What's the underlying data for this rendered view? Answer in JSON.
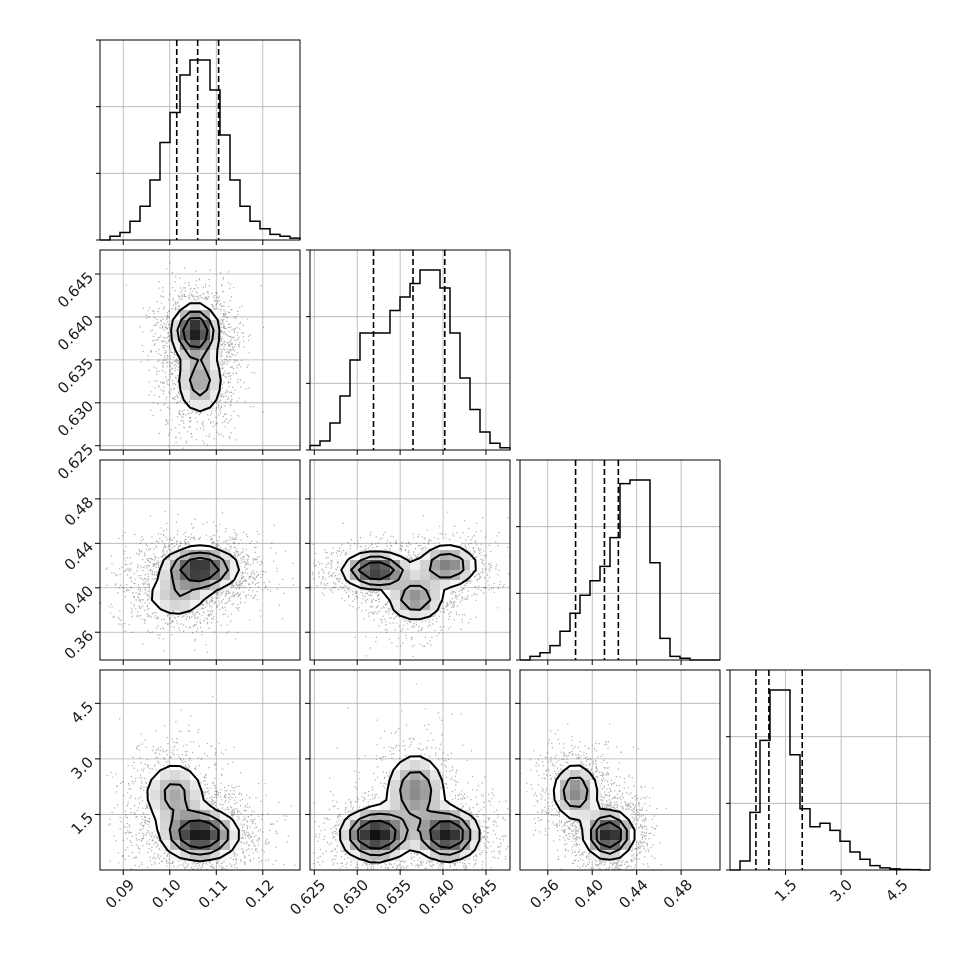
{
  "chart_data": {
    "type": "corner",
    "grid": true,
    "parameters": [
      {
        "ticks": [
          "0.09",
          "0.10",
          "0.11",
          "0.12"
        ],
        "range": [
          0.085,
          0.128
        ],
        "mean": 0.106,
        "sd": 0.0045,
        "quantiles": [
          0.1015,
          0.106,
          0.1105
        ],
        "histogram": [
          0,
          1,
          2,
          5,
          9,
          16,
          26,
          34,
          44,
          48,
          48,
          40,
          28,
          16,
          9,
          5,
          3,
          1.5,
          1,
          0.5
        ]
      },
      {
        "ticks": [
          "0.625",
          "0.630",
          "0.635",
          "0.640",
          "0.645"
        ],
        "range": [
          0.6245,
          0.6478
        ],
        "mean": 0.6365,
        "sd": 0.0035,
        "quantiles": [
          0.6319,
          0.6365,
          0.6402
        ],
        "histogram": [
          1,
          2,
          6,
          12,
          20,
          26,
          26,
          26,
          31,
          34,
          37,
          40,
          40,
          36,
          26,
          16,
          9,
          4,
          1.5,
          0.5
        ]
      },
      {
        "ticks": [
          "0.36",
          "0.40",
          "0.44",
          "0.48"
        ],
        "range": [
          0.335,
          0.515
        ],
        "mean": 0.405,
        "sd": 0.02,
        "quantiles": [
          0.385,
          0.411,
          0.4235
        ],
        "histogram": [
          0,
          1,
          2,
          4,
          8,
          13,
          18,
          22,
          26,
          34,
          49,
          50,
          50,
          27,
          6,
          1,
          0.5,
          0,
          0,
          0
        ]
      },
      {
        "ticks": [
          "1.5",
          "3.0",
          "4.5"
        ],
        "range": [
          0.0,
          5.4
        ],
        "mean": 1.5,
        "sd": 0.7,
        "quantiles": [
          0.7,
          1.05,
          1.95
        ],
        "histogram": [
          0,
          2.5,
          16,
          36,
          50,
          50,
          32,
          17,
          12,
          13,
          11,
          8,
          5,
          3,
          1.2,
          0.6,
          0.3,
          0.15,
          0.1,
          0
        ]
      }
    ],
    "axis_ticks_left": {
      "row1": [
        "0.625",
        "0.630",
        "0.635",
        "0.640",
        "0.645"
      ],
      "row2": [
        "0.36",
        "0.40",
        "0.44",
        "0.48"
      ],
      "row3": [
        "1.5",
        "3.0",
        "4.5"
      ]
    },
    "modes": {
      "1-0": [
        [
          0.1055,
          0.6383,
          0.0025,
          0.0016,
          1.0
        ],
        [
          0.1065,
          0.6325,
          0.0028,
          0.0022,
          0.45
        ]
      ],
      "2-0": [
        [
          0.1065,
          0.417,
          0.0042,
          0.01,
          1.0
        ],
        [
          0.1015,
          0.392,
          0.004,
          0.011,
          0.35
        ]
      ],
      "2-1": [
        [
          0.6322,
          0.4155,
          0.002,
          0.0082,
          1.0
        ],
        [
          0.6405,
          0.42,
          0.0019,
          0.01,
          0.62
        ],
        [
          0.6368,
          0.39,
          0.0018,
          0.011,
          0.55
        ]
      ],
      "3-0": [
        [
          0.1065,
          0.95,
          0.0042,
          0.35,
          1.0
        ],
        [
          0.101,
          2.05,
          0.0038,
          0.5,
          0.42
        ]
      ],
      "3-1": [
        [
          0.6322,
          0.95,
          0.0021,
          0.36,
          1.0
        ],
        [
          0.6405,
          0.95,
          0.0019,
          0.36,
          0.95
        ],
        [
          0.6368,
          2.15,
          0.0019,
          0.55,
          0.52
        ]
      ],
      "3-2": [
        [
          0.415,
          0.95,
          0.011,
          0.33,
          1.0
        ],
        [
          0.385,
          2.1,
          0.011,
          0.42,
          0.55
        ]
      ]
    }
  }
}
